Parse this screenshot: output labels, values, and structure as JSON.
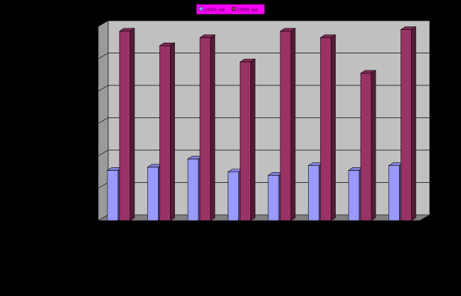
{
  "chart_data": {
    "type": "bar",
    "categories": [
      "",
      "",
      "",
      "",
      "",
      "",
      "",
      ""
    ],
    "series": [
      {
        "name": "2004 яд",
        "color": "#9999ff",
        "values": [
          1.55,
          1.65,
          1.9,
          1.5,
          1.4,
          1.7,
          1.55,
          1.7
        ]
      },
      {
        "name": "2008 яд",
        "color": "#993366",
        "values": [
          5.85,
          5.4,
          5.65,
          4.9,
          5.85,
          5.65,
          4.55,
          5.9
        ]
      }
    ],
    "ylim": [
      0,
      6
    ],
    "grid": true,
    "legend_position": "top-center",
    "colors": {
      "background": "#000000",
      "plot_wall": "#c0c0c0",
      "legend_fill": "#ff00ff",
      "gridline": "#000000"
    }
  }
}
